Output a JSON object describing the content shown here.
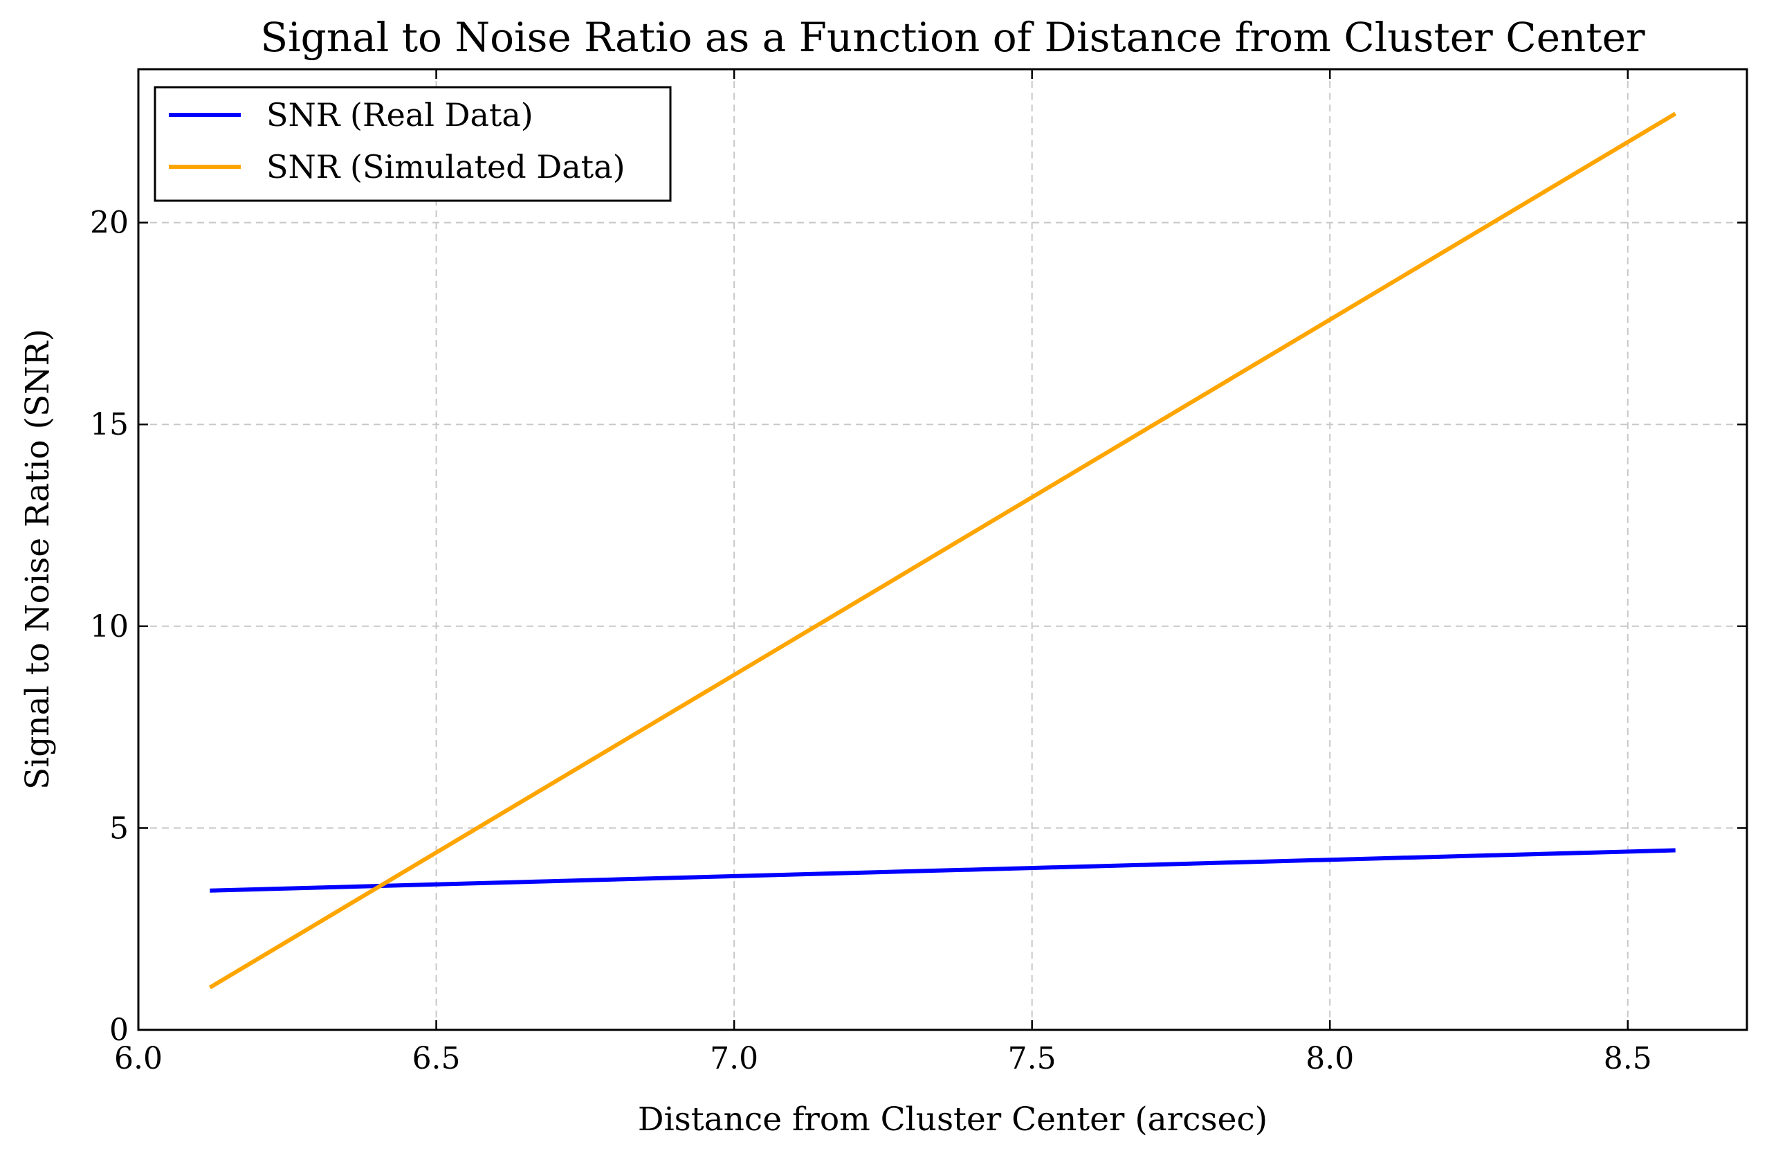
{
  "chart_data": {
    "type": "line",
    "title": "Signal to Noise Ratio as a Function of Distance from Cluster Center",
    "xlabel": "Distance from Cluster Center (arcsec)",
    "ylabel": "Signal to Noise Ratio (SNR)",
    "xlim": [
      6.0,
      8.7
    ],
    "ylim": [
      0,
      23.8
    ],
    "xticks": [
      6.0,
      6.5,
      7.0,
      7.5,
      8.0,
      8.5
    ],
    "xtick_labels": [
      "6.0",
      "6.5",
      "7.0",
      "7.5",
      "8.0",
      "8.5"
    ],
    "yticks": [
      0,
      5,
      10,
      15,
      20
    ],
    "ytick_labels": [
      "0",
      "5",
      "10",
      "15",
      "20"
    ],
    "grid": true,
    "legend_position": "top-left",
    "series": [
      {
        "name": "SNR (Real Data)",
        "color": "#0000ff",
        "x": [
          6.12,
          8.58
        ],
        "y": [
          3.45,
          4.45
        ]
      },
      {
        "name": "SNR (Simulated Data)",
        "color": "#ffa500",
        "x": [
          6.12,
          8.58
        ],
        "y": [
          1.05,
          22.7
        ]
      }
    ]
  }
}
